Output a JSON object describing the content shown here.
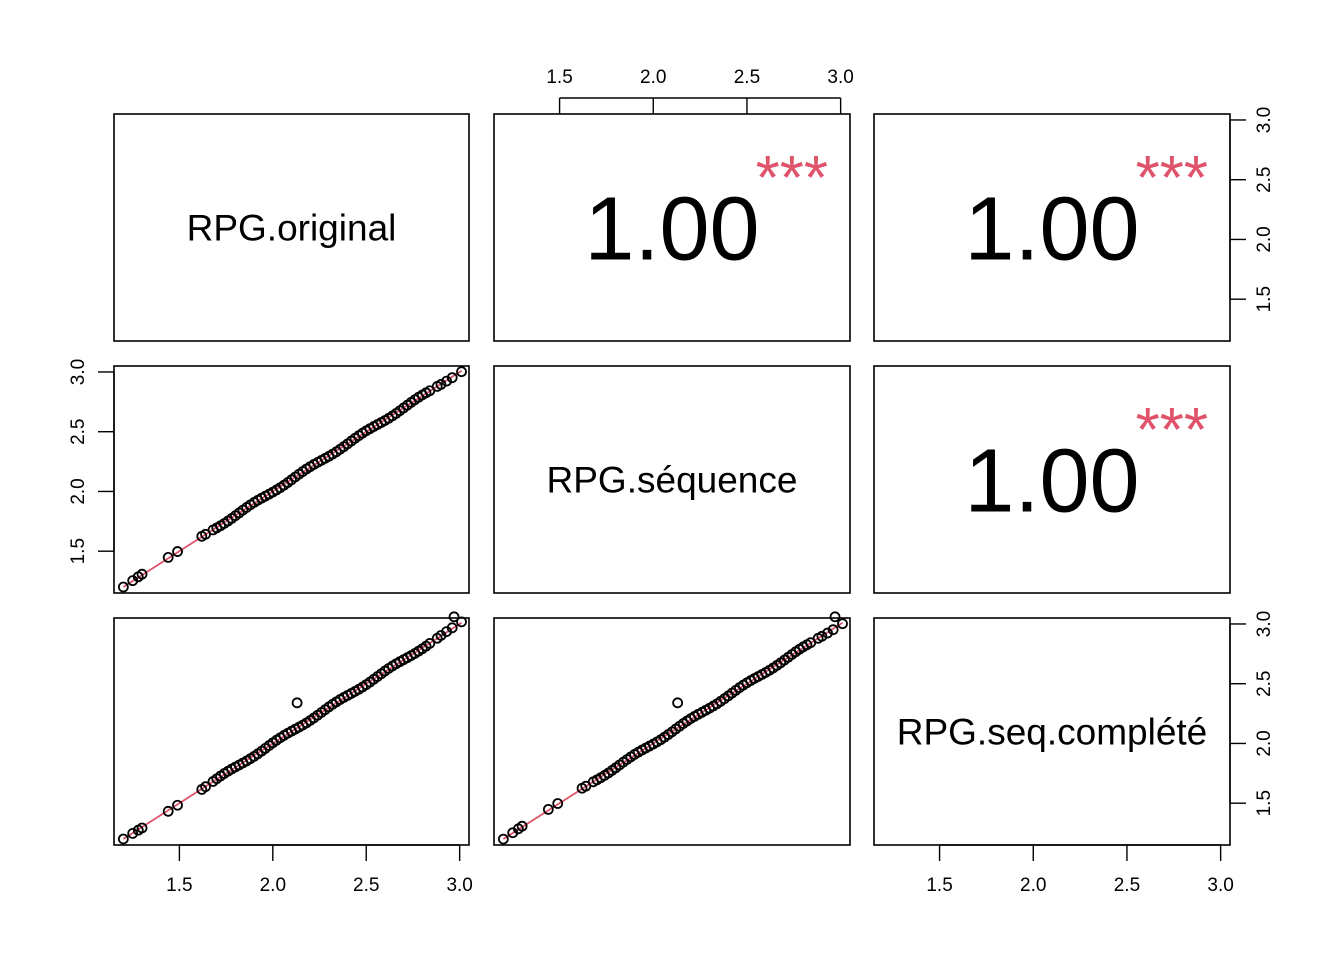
{
  "chart_data": {
    "type": "scatter-matrix",
    "variables": [
      "RPG.original",
      "RPG.séquence",
      "RPG.seq.complété"
    ],
    "axis_range": [
      1.15,
      3.05
    ],
    "ticks": [
      "1.5",
      "2.0",
      "2.5",
      "3.0"
    ],
    "tick_values": [
      1.5,
      2.0,
      2.5,
      3.0
    ],
    "correlations": [
      {
        "row": 0,
        "col": 1,
        "value": "1.00",
        "stars": "***"
      },
      {
        "row": 0,
        "col": 2,
        "value": "1.00",
        "stars": "***"
      },
      {
        "row": 1,
        "col": 2,
        "value": "1.00",
        "stars": "***"
      }
    ],
    "scatter_panels": [
      {
        "row": 1,
        "col": 0,
        "x": "RPG.original",
        "y": "RPG.séquence"
      },
      {
        "row": 2,
        "col": 0,
        "x": "RPG.original",
        "y": "RPG.seq.complété"
      },
      {
        "row": 2,
        "col": 1,
        "x": "RPG.séquence",
        "y": "RPG.seq.complété"
      }
    ],
    "base_points": [
      1.2,
      1.25,
      1.28,
      1.3,
      1.44,
      1.49,
      1.62,
      1.64,
      1.68,
      1.7,
      1.72,
      1.74,
      1.76,
      1.78,
      1.8,
      1.82,
      1.84,
      1.86,
      1.88,
      1.9,
      1.92,
      1.94,
      1.96,
      1.98,
      2.0,
      2.02,
      2.04,
      2.06,
      2.08,
      2.1,
      2.12,
      2.14,
      2.16,
      2.18,
      2.2,
      2.22,
      2.24,
      2.26,
      2.28,
      2.3,
      2.32,
      2.34,
      2.36,
      2.38,
      2.4,
      2.42,
      2.44,
      2.46,
      2.48,
      2.5,
      2.52,
      2.54,
      2.56,
      2.58,
      2.6,
      2.62,
      2.64,
      2.66,
      2.68,
      2.7,
      2.72,
      2.74,
      2.76,
      2.78,
      2.8,
      2.82,
      2.84,
      2.88,
      2.9,
      2.93,
      2.96,
      3.01
    ],
    "outliers_completed": [
      {
        "x": 2.13,
        "y": 2.34
      },
      {
        "x": 2.97,
        "y": 3.06
      }
    ]
  }
}
